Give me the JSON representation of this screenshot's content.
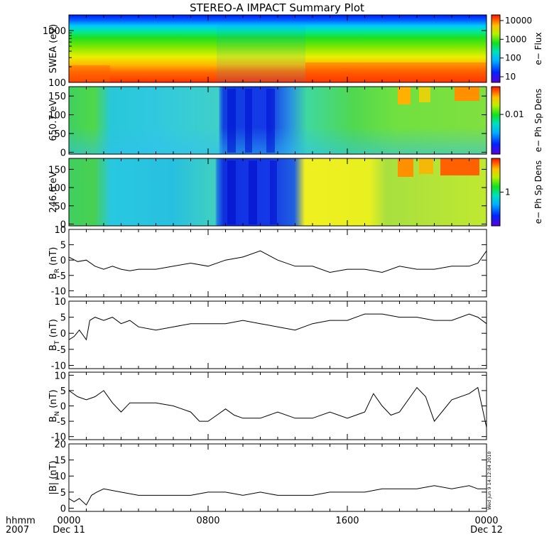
{
  "title": "STEREO-A IMPACT Summary Plot",
  "chart_data": [
    {
      "type": "heatmap",
      "ylabel": "SWEA (eV)",
      "ylog": true,
      "ylim": [
        100,
        2000
      ],
      "yticks": [
        100,
        1000
      ],
      "colorbar": {
        "label": "e− Flux",
        "log": true,
        "range": [
          5,
          20000
        ],
        "ticks": [
          "10",
          "100",
          "1000",
          "10000"
        ],
        "tick_values": [
          10,
          100,
          1000,
          10000
        ]
      }
    },
    {
      "type": "heatmap",
      "ylabel": "650.7 eV",
      "ylim": [
        -5,
        175
      ],
      "yticks": [
        0,
        50,
        100,
        150
      ],
      "colorbar": {
        "label": "e− Ph Sp Dens",
        "log": true,
        "range": [
          0.001,
          0.05
        ],
        "ticks": [
          "0.01"
        ],
        "tick_values": [
          0.01
        ]
      }
    },
    {
      "type": "heatmap",
      "ylabel": "246.6 eV",
      "ylim": [
        -5,
        180
      ],
      "yticks": [
        0,
        50,
        100,
        150
      ],
      "colorbar": {
        "label": "e− Ph Sp Dens",
        "log": true,
        "range": [
          0.1,
          10
        ],
        "ticks": [
          "1"
        ],
        "tick_values": [
          1
        ]
      }
    },
    {
      "type": "line",
      "ylabel": "B",
      "ylabel_sub": "R",
      "ylabel_unit": " (nT)",
      "ylim": [
        -12,
        10
      ],
      "yticks": [
        -10,
        -5,
        0,
        5,
        10
      ],
      "x": [
        0,
        0.5,
        1,
        1.5,
        2,
        2.5,
        3,
        3.5,
        4,
        5,
        6,
        7,
        8,
        9,
        10,
        11,
        12,
        13,
        14,
        15,
        16,
        17,
        18,
        19,
        20,
        21,
        22,
        23,
        23.5,
        24
      ],
      "values": [
        1,
        -0.5,
        0,
        -2,
        -3,
        -2,
        -3,
        -3.5,
        -3,
        -3,
        -2,
        -1,
        -2,
        0,
        1,
        3,
        0,
        -2,
        -2,
        -4,
        -3,
        -3,
        -4,
        -2,
        -3,
        -3,
        -2,
        -2,
        -1,
        3
      ]
    },
    {
      "type": "line",
      "ylabel": "B",
      "ylabel_sub": "T",
      "ylabel_unit": " (nT)",
      "ylim": [
        -11,
        10
      ],
      "yticks": [
        -10,
        -5,
        0,
        5,
        10
      ],
      "x": [
        0,
        0.3,
        0.6,
        1,
        1.2,
        1.5,
        2,
        2.5,
        3,
        3.5,
        4,
        5,
        6,
        7,
        8,
        9,
        10,
        11,
        12,
        13,
        14,
        15,
        16,
        17,
        18,
        19,
        20,
        21,
        22,
        23,
        23.5,
        24
      ],
      "values": [
        -2,
        -1,
        1,
        -2,
        4,
        5,
        4,
        5,
        3,
        4,
        2,
        1,
        2,
        3,
        3,
        3,
        4,
        3,
        2,
        1,
        3,
        4,
        4,
        6,
        6,
        5,
        5,
        4,
        4,
        6,
        5,
        3
      ]
    },
    {
      "type": "line",
      "ylabel": "B",
      "ylabel_sub": "N",
      "ylabel_unit": " (nT)",
      "ylim": [
        -11,
        11
      ],
      "yticks": [
        -10,
        -5,
        0,
        5,
        10
      ],
      "x": [
        0,
        0.5,
        1,
        1.5,
        2,
        2.5,
        3,
        3.5,
        4,
        5,
        6,
        7,
        7.5,
        8,
        8.5,
        9,
        9.5,
        10,
        11,
        12,
        13,
        14,
        15,
        16,
        17,
        17.5,
        18,
        18.5,
        19,
        20,
        20.5,
        21,
        22,
        23,
        23.5,
        24
      ],
      "values": [
        5,
        3,
        2,
        3,
        5,
        1,
        -2,
        1,
        1,
        1,
        0,
        -2,
        -5,
        -5,
        -3,
        -1,
        -3,
        -4,
        -4,
        -2,
        -4,
        -4,
        -2,
        -4,
        -2,
        4,
        0,
        -3,
        -2,
        6,
        3,
        -5,
        2,
        4,
        6,
        -7
      ]
    },
    {
      "type": "line",
      "ylabel": "|B| (nT)",
      "ylim": [
        -1,
        20
      ],
      "yticks": [
        0,
        5,
        10,
        15,
        20
      ],
      "x": [
        0,
        0.3,
        0.6,
        1,
        1.3,
        1.6,
        2,
        3,
        4,
        5,
        6,
        7,
        8,
        9,
        10,
        11,
        12,
        13,
        14,
        15,
        16,
        17,
        18,
        19,
        20,
        21,
        22,
        23,
        23.5,
        24
      ],
      "values": [
        3,
        2,
        3,
        1,
        4,
        5,
        6,
        5,
        4,
        4,
        4,
        4,
        5,
        5,
        4,
        5,
        4,
        4,
        4,
        5,
        5,
        5,
        6,
        6,
        6,
        7,
        6,
        7,
        6,
        6
      ]
    }
  ],
  "x_axis": {
    "row1_label": "hhmm",
    "row2_label": "2007",
    "ticks": [
      {
        "hour": 0,
        "time": "0000",
        "date": "Dec 11"
      },
      {
        "hour": 8,
        "time": "0800",
        "date": ""
      },
      {
        "hour": 16,
        "time": "1600",
        "date": ""
      },
      {
        "hour": 24,
        "time": "0000",
        "date": "Dec 12"
      }
    ],
    "range_hours": [
      0,
      24
    ]
  },
  "timestamp": "Wed Jun  9 14:12:04 2010"
}
